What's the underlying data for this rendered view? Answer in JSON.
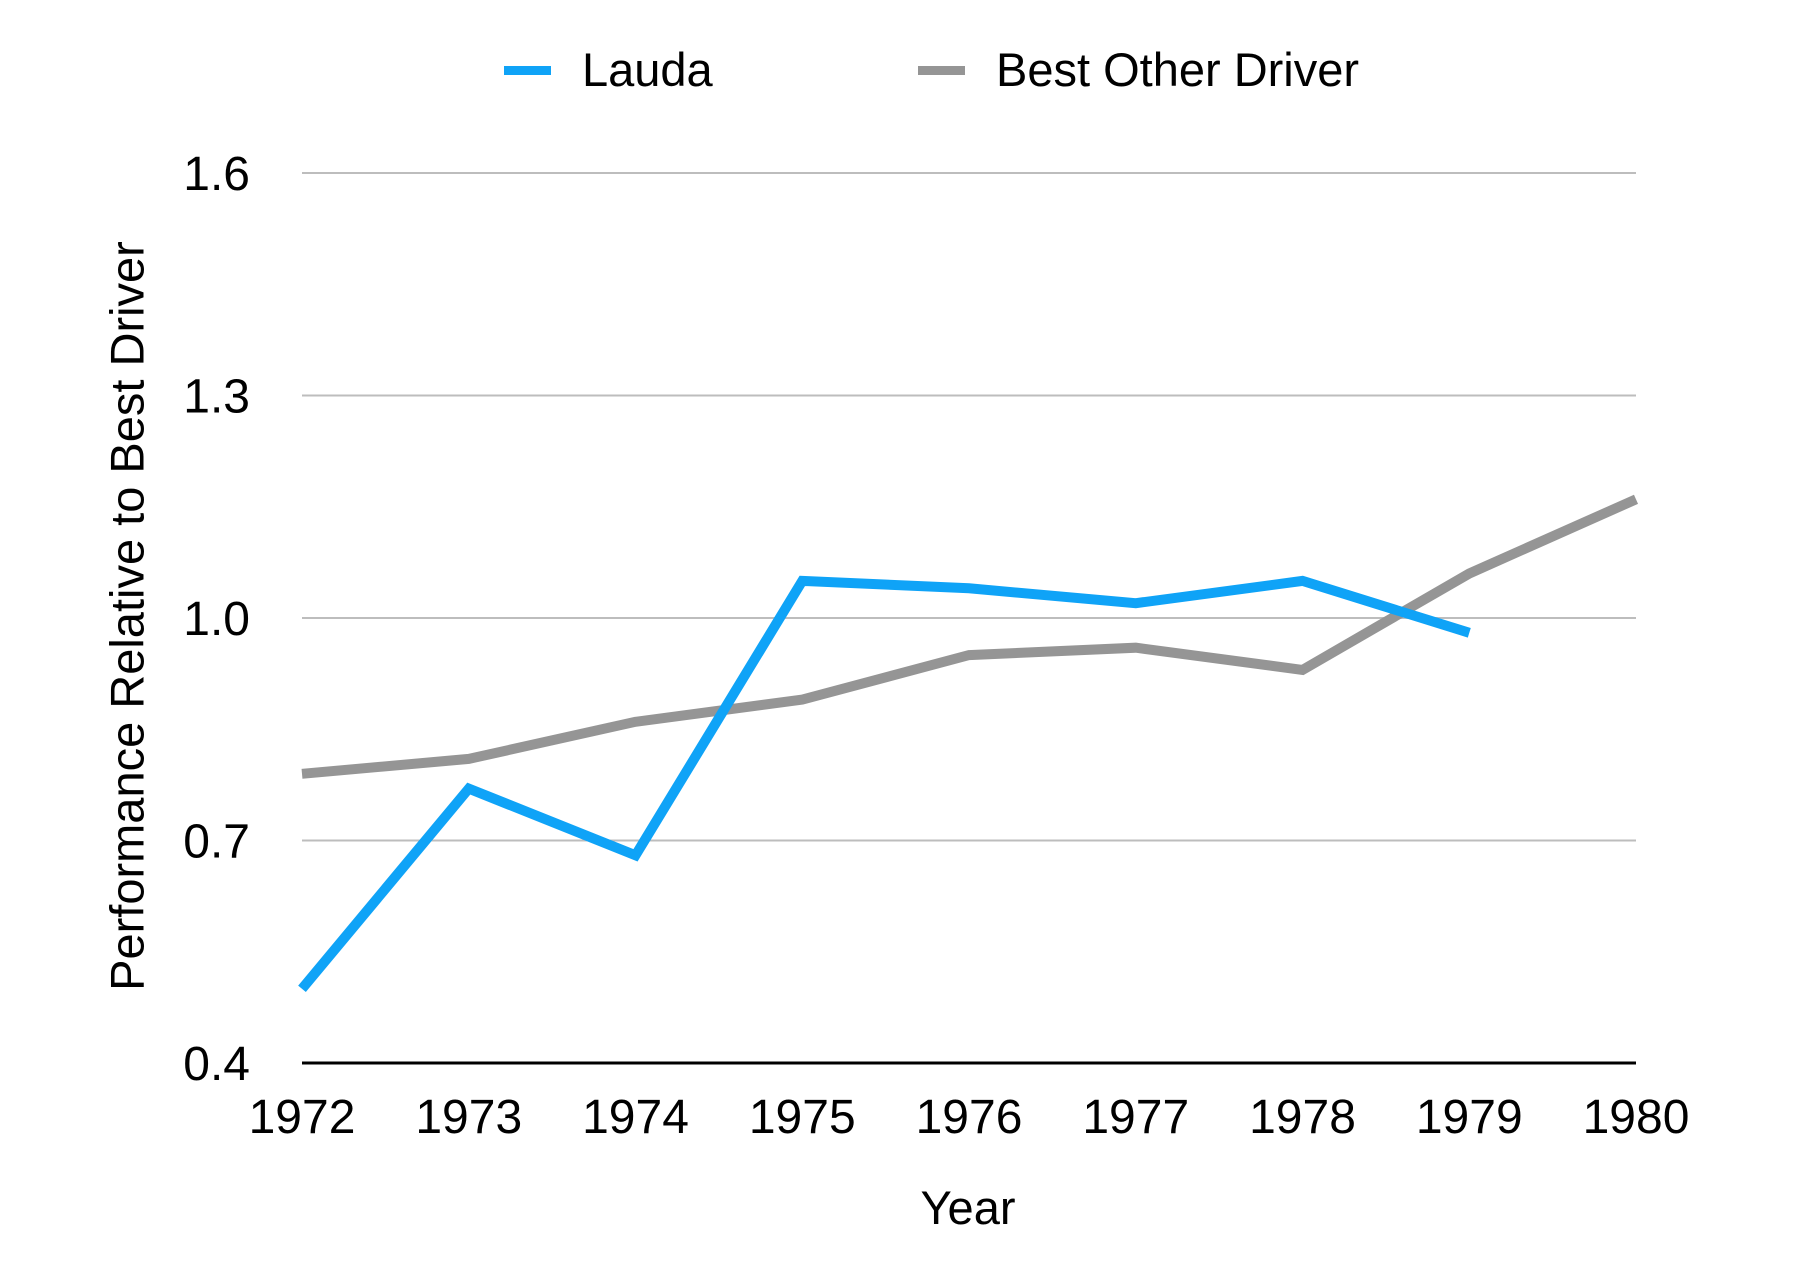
{
  "chart_data": {
    "type": "line",
    "title": "",
    "xlabel": "Year",
    "ylabel": "Performance Relative to Best Driver",
    "x": [
      "1972",
      "1973",
      "1974",
      "1975",
      "1976",
      "1977",
      "1978",
      "1979",
      "1980"
    ],
    "series": [
      {
        "name": "Lauda",
        "color": "#0fa3f7",
        "values": [
          0.5,
          0.77,
          0.68,
          1.05,
          1.04,
          1.02,
          1.05,
          0.98,
          null
        ]
      },
      {
        "name": "Best Other Driver",
        "color": "#959595",
        "values": [
          0.79,
          0.81,
          0.86,
          0.89,
          0.95,
          0.96,
          0.93,
          1.06,
          1.16
        ]
      }
    ],
    "ylim": [
      0.4,
      1.6
    ],
    "yticks": [
      "0.4",
      "0.7",
      "1.0",
      "1.3",
      "1.6"
    ],
    "ytick_values": [
      0.4,
      0.7,
      1.0,
      1.3,
      1.6
    ],
    "grid": true,
    "legend_position": "top"
  },
  "legend": {
    "items": [
      {
        "label": "Lauda",
        "color": "#0fa3f7"
      },
      {
        "label": "Best Other Driver",
        "color": "#959595"
      }
    ]
  },
  "axes": {
    "x_title": "Year",
    "y_title": "Performance Relative to Best Driver"
  }
}
